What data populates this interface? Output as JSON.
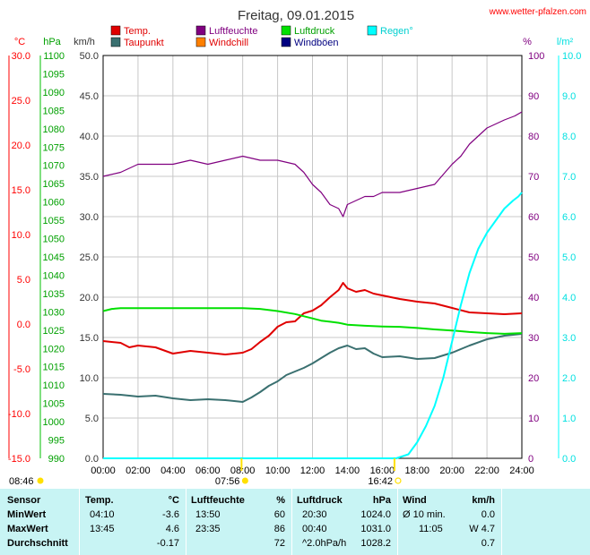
{
  "title": "Freitag, 09.01.2015",
  "site": "www.wetter-pfalzen.com",
  "legend": [
    {
      "label": "Temp.",
      "color": "#e00000"
    },
    {
      "label": "Taupunkt",
      "color": "#3a7070"
    },
    {
      "label": "Luftfeuchte",
      "color": "#800080"
    },
    {
      "label": "Windchill",
      "color": "#ff8000"
    },
    {
      "label": "Luftdruck",
      "color": "#00e000"
    },
    {
      "label": "Windböen",
      "color": "#000080"
    },
    {
      "label": "Regen",
      "color": "#00ffff"
    }
  ],
  "axis_units": {
    "temp": "°C",
    "pressure": "hPa",
    "wind": "km/h",
    "humidity": "%",
    "rain": "l/m²"
  },
  "axis_ticks": {
    "temp": [
      "30.0",
      "25.0",
      "20.0",
      "15.0",
      "10.0",
      "5.0",
      "0.0",
      "-5.0",
      "-10.0",
      "-15.0"
    ],
    "pressure": [
      "1100",
      "1095",
      "1090",
      "1085",
      "1080",
      "1075",
      "1070",
      "1065",
      "1060",
      "1055",
      "1050",
      "1045",
      "1040",
      "1035",
      "1030",
      "1025",
      "1020",
      "1015",
      "1010",
      "1005",
      "1000",
      "995",
      "990"
    ],
    "wind": [
      "50.0",
      "45.0",
      "40.0",
      "35.0",
      "30.0",
      "25.0",
      "20.0",
      "15.0",
      "10.0",
      "5.0",
      "0.0"
    ],
    "humidity": [
      "100",
      "90",
      "80",
      "70",
      "60",
      "50",
      "40",
      "30",
      "20",
      "10",
      "0"
    ],
    "rain": [
      "10.0",
      "9.0",
      "8.0",
      "7.0",
      "6.0",
      "5.0",
      "4.0",
      "3.0",
      "2.0",
      "1.0",
      "0.0"
    ],
    "x": [
      "00:00",
      "02:00",
      "04:00",
      "06:00",
      "08:00",
      "10:00",
      "12:00",
      "14:00",
      "16:00",
      "18:00",
      "20:00",
      "22:00",
      "24:00"
    ]
  },
  "sun": {
    "sunrise": "08:46",
    "sunset": "16:42",
    "dawn": "07:56"
  },
  "chart_data": {
    "type": "line",
    "title": "Freitag, 09.01.2015",
    "x_unit": "hour",
    "ylim_temp": [
      -15,
      30
    ],
    "ylim_pressure": [
      990,
      1100
    ],
    "ylim_humidity": [
      0,
      100
    ],
    "ylim_rain": [
      0,
      10
    ],
    "series": [
      {
        "name": "Temp.",
        "axis": "temp",
        "color": "#e00000",
        "x": [
          0,
          1,
          1.5,
          2,
          3,
          4,
          5,
          6,
          7,
          8,
          8.5,
          9,
          9.5,
          10,
          10.5,
          11,
          11.5,
          12,
          12.5,
          13,
          13.5,
          13.75,
          14,
          14.5,
          15,
          15.5,
          16,
          17,
          18,
          19,
          20,
          21,
          22,
          23,
          24
        ],
        "y": [
          -1.9,
          -2.1,
          -2.6,
          -2.4,
          -2.6,
          -3.3,
          -3.0,
          -3.2,
          -3.4,
          -3.2,
          -2.8,
          -2.0,
          -1.3,
          -0.3,
          0.2,
          0.3,
          1.2,
          1.5,
          2.1,
          3.0,
          3.8,
          4.6,
          4.0,
          3.6,
          3.8,
          3.4,
          3.2,
          2.8,
          2.5,
          2.3,
          1.8,
          1.3,
          1.2,
          1.1,
          1.2
        ]
      },
      {
        "name": "Taupunkt",
        "axis": "temp",
        "color": "#3a7070",
        "x": [
          0,
          1,
          2,
          3,
          4,
          5,
          6,
          7,
          8,
          8.5,
          9,
          9.5,
          10,
          10.5,
          11,
          11.5,
          12,
          12.5,
          13,
          13.5,
          14,
          14.5,
          15,
          15.5,
          16,
          17,
          18,
          19,
          20,
          21,
          22,
          23,
          24
        ],
        "y": [
          -7.8,
          -7.9,
          -8.1,
          -8.0,
          -8.3,
          -8.5,
          -8.4,
          -8.5,
          -8.7,
          -8.2,
          -7.6,
          -6.9,
          -6.4,
          -5.7,
          -5.3,
          -4.9,
          -4.4,
          -3.8,
          -3.2,
          -2.7,
          -2.4,
          -2.8,
          -2.7,
          -3.3,
          -3.7,
          -3.6,
          -3.9,
          -3.8,
          -3.2,
          -2.4,
          -1.7,
          -1.3,
          -1.1
        ]
      },
      {
        "name": "Luftfeuchte",
        "axis": "humidity",
        "color": "#800080",
        "x": [
          0,
          1,
          2,
          3,
          4,
          5,
          6,
          7,
          8,
          9,
          10,
          11,
          11.5,
          12,
          12.5,
          13,
          13.5,
          13.75,
          14,
          14.5,
          15,
          15.5,
          16,
          17,
          18,
          19,
          20,
          20.5,
          21,
          22,
          23,
          23.6,
          24
        ],
        "y": [
          70,
          71,
          73,
          73,
          73,
          74,
          73,
          74,
          75,
          74,
          74,
          73,
          71,
          68,
          66,
          63,
          62,
          60,
          63,
          64,
          65,
          65,
          66,
          66,
          67,
          68,
          73,
          75,
          78,
          82,
          84,
          85,
          86
        ]
      },
      {
        "name": "Luftdruck",
        "axis": "pressure",
        "color": "#00e000",
        "x": [
          0,
          0.5,
          1,
          2,
          3,
          4,
          5,
          6,
          7,
          8,
          9,
          10,
          11,
          12,
          12.5,
          13,
          13.5,
          14,
          15,
          16,
          17,
          18,
          19,
          20,
          21,
          22,
          23,
          24
        ],
        "y": [
          1030.2,
          1030.8,
          1031.0,
          1031.0,
          1031.0,
          1031.0,
          1031.0,
          1031.0,
          1031.0,
          1031.0,
          1030.8,
          1030.2,
          1029.4,
          1028.2,
          1027.6,
          1027.3,
          1027.0,
          1026.5,
          1026.2,
          1026.0,
          1025.9,
          1025.6,
          1025.2,
          1024.9,
          1024.5,
          1024.2,
          1024.0,
          1024.2
        ]
      },
      {
        "name": "Regen",
        "axis": "rain",
        "color": "#00ffff",
        "x": [
          0,
          8,
          16,
          16.8,
          17.5,
          18,
          18.5,
          19,
          19.5,
          20,
          20.5,
          21,
          21.5,
          22,
          22.5,
          23,
          23.5,
          23.8,
          24
        ],
        "y": [
          0,
          0,
          0,
          0,
          0.1,
          0.4,
          0.8,
          1.3,
          2.0,
          2.9,
          3.8,
          4.6,
          5.2,
          5.6,
          5.9,
          6.2,
          6.4,
          6.5,
          6.6
        ]
      }
    ]
  },
  "stats": {
    "header": {
      "sensor": "Sensor",
      "temp": "Temp.",
      "temp_unit": "°C",
      "hum": "Luftfeuchte",
      "hum_unit": "%",
      "press": "Luftdruck",
      "press_unit": "hPa",
      "wind": "Wind",
      "wind_unit": "km/h"
    },
    "rows": [
      {
        "label": "MinWert",
        "temp_time": "04:10",
        "temp_val": "-3.6",
        "hum_time": "13:50",
        "hum_val": "60",
        "press_time": "20:30",
        "press_val": "1024.0",
        "wind_label": "Ø 10 min.",
        "wind_val": "0.0"
      },
      {
        "label": "MaxWert",
        "temp_time": "13:45",
        "temp_val": "4.6",
        "hum_time": "23:35",
        "hum_val": "86",
        "press_time": "00:40",
        "press_val": "1031.0",
        "wind_label": "11:05",
        "wind_val": "W 4.7"
      },
      {
        "label": "Durchschnitt",
        "temp_time": "",
        "temp_val": "-0.17",
        "hum_time": "",
        "hum_val": "72",
        "press_time": "^2.0hPa/h",
        "press_val": "1028.2",
        "wind_label": "",
        "wind_val": "0.7"
      }
    ]
  }
}
